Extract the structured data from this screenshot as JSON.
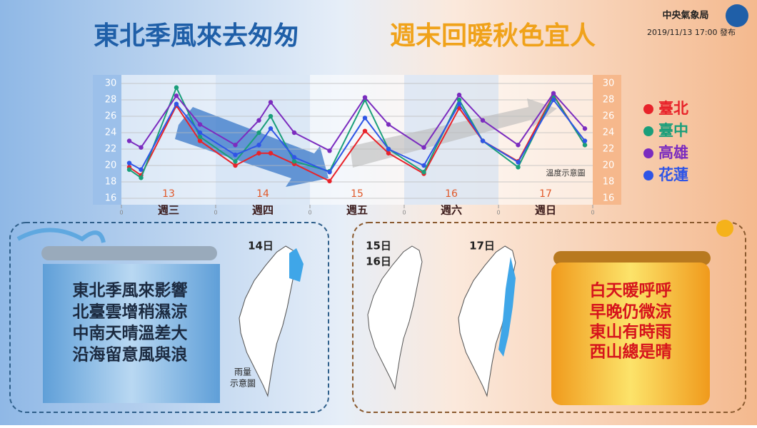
{
  "header": {
    "title_left": "東北季風來去匆匆",
    "title_right": "週末回暖秋色宜人",
    "agency": "中央氣象局",
    "issued": "2019/11/13 17:00 發布"
  },
  "chart_data": {
    "type": "line",
    "x": [
      2,
      5,
      14,
      20,
      29,
      35,
      38,
      44,
      53,
      62,
      68,
      77,
      86,
      92,
      101,
      110,
      118
    ],
    "xlim": [
      0,
      120
    ],
    "xticks": [
      0,
      {
        "value": 24,
        "label": "0"
      },
      {
        "value": 48,
        "label": "0"
      },
      {
        "value": 72,
        "label": "0"
      },
      {
        "value": 96,
        "label": "0"
      },
      {
        "value": 120,
        "label": "0"
      }
    ],
    "series": [
      {
        "name": "臺北",
        "color": "#e8232a",
        "values": [
          19.8,
          18.8,
          27.3,
          23,
          20,
          21.5,
          21.5,
          20.2,
          18.1,
          24.2,
          21.5,
          19,
          27,
          23,
          20.5,
          28.6,
          22.5
        ]
      },
      {
        "name": "臺中",
        "color": "#1a9e7a",
        "values": [
          19.5,
          18.5,
          29.5,
          23.5,
          20.5,
          24,
          26,
          20.5,
          19.3,
          28,
          22,
          19.2,
          28,
          23,
          19.8,
          28.5,
          22.5
        ]
      },
      {
        "name": "高雄",
        "color": "#7b2cbf",
        "values": [
          23,
          22.2,
          28.5,
          25,
          22.5,
          25.5,
          27.7,
          24,
          21.8,
          28.3,
          25,
          22.2,
          28.6,
          25.5,
          22.5,
          28.8,
          24.5
        ]
      },
      {
        "name": "花蓮",
        "color": "#2f55e6",
        "values": [
          20.3,
          19.5,
          27.5,
          24,
          21.3,
          22.5,
          24.5,
          21,
          19.2,
          25.8,
          22,
          20,
          27.5,
          23,
          20.4,
          28,
          23
        ]
      }
    ],
    "ylim": [
      16,
      30
    ],
    "yticks": [
      16,
      18,
      20,
      22,
      24,
      26,
      28,
      30
    ],
    "y2lim": [
      16,
      30
    ],
    "y2ticks": [
      16,
      18,
      20,
      22,
      24,
      26,
      28,
      30
    ],
    "grid": true,
    "annotation": "溫度示意圖",
    "day_numbers": [
      "13",
      "14",
      "15",
      "16",
      "17"
    ],
    "weekdays": [
      "週三",
      "週四",
      "週五",
      "週六",
      "週日"
    ]
  },
  "left_panel": {
    "map_label": "14日",
    "lines": [
      "東北季風來影響",
      "北臺雲增稍濕涼",
      "中南天晴溫差大",
      "沿海留意風與浪"
    ],
    "map_note": [
      "雨量",
      "示意圖"
    ]
  },
  "right_panel": {
    "map_label_a": [
      "15日",
      "16日"
    ],
    "map_label_b": "17日",
    "lines": [
      "白天暖呼呼",
      "早晚仍微涼",
      "東山有時雨",
      "西山總是晴"
    ]
  }
}
